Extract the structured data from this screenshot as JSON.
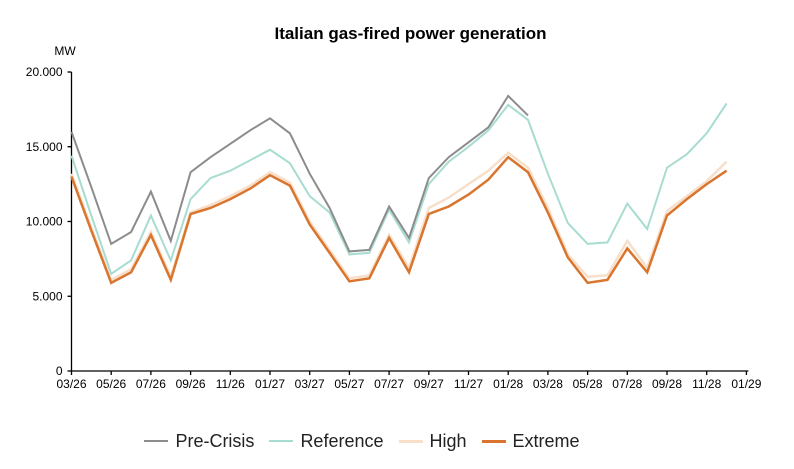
{
  "header": {
    "title": "Italian gas-fired power generation",
    "y_unit_label": "MW"
  },
  "chart_data": {
    "type": "line",
    "title": "Italian gas-fired power generation",
    "xlabel": "",
    "ylabel": "MW",
    "ylim": [
      0,
      20000
    ],
    "grid": false,
    "legend_position": "bottom",
    "y_tick_labels": [
      "0",
      "5.000",
      "10.000",
      "15.000",
      "20.000"
    ],
    "y_tick_values": [
      0,
      5000,
      10000,
      15000,
      20000
    ],
    "x": [
      "03/26",
      "04/26",
      "05/26",
      "06/26",
      "07/26",
      "08/26",
      "09/26",
      "10/26",
      "11/26",
      "12/26",
      "01/27",
      "02/27",
      "03/27",
      "04/27",
      "05/27",
      "06/27",
      "07/27",
      "08/27",
      "09/27",
      "10/27",
      "11/27",
      "12/27",
      "01/28",
      "02/28",
      "03/28",
      "04/28",
      "05/28",
      "06/28",
      "07/28",
      "08/28",
      "09/28",
      "10/28",
      "11/28",
      "12/28"
    ],
    "x_tick_labels": [
      "03/26",
      "05/26",
      "07/26",
      "09/26",
      "11/26",
      "01/27",
      "03/27",
      "05/27",
      "07/27",
      "09/27",
      "11/27",
      "01/28",
      "03/28",
      "05/28",
      "07/28",
      "09/28",
      "11/28",
      "01/29"
    ],
    "x_tick_every": 2,
    "series": [
      {
        "name": "Pre-Crisis",
        "color": "#8c8c8c",
        "width": 2,
        "values": [
          16000,
          12300,
          8500,
          9300,
          12000,
          8700,
          13300,
          14300,
          15200,
          16100,
          16900,
          15900,
          13200,
          10900,
          8000,
          8100,
          11000,
          8900,
          12900,
          14300,
          15300,
          16300,
          18400,
          17100,
          null,
          null,
          null,
          null,
          null,
          null,
          null,
          null,
          null,
          null
        ]
      },
      {
        "name": "Reference",
        "color": "#a7dcd1",
        "width": 2,
        "values": [
          14400,
          10400,
          6500,
          7400,
          10400,
          7400,
          11500,
          12900,
          13400,
          14100,
          14800,
          13900,
          11700,
          10600,
          7800,
          7900,
          10800,
          8600,
          12500,
          14000,
          15000,
          16100,
          17800,
          16800,
          13200,
          9900,
          8500,
          8600,
          11200,
          9500,
          13600,
          14500,
          15900,
          17900
        ]
      },
      {
        "name": "High",
        "color": "#f7dfc9",
        "width": 2.5,
        "values": [
          13200,
          9600,
          6100,
          6800,
          9300,
          6300,
          10600,
          11100,
          11700,
          12400,
          13300,
          12600,
          10000,
          8100,
          6200,
          6400,
          9100,
          6900,
          10900,
          11600,
          12500,
          13400,
          14600,
          13600,
          10900,
          7800,
          6300,
          6400,
          8700,
          6900,
          10700,
          11700,
          12700,
          14000
        ]
      },
      {
        "name": "Extreme",
        "color": "#d9752e",
        "width": 2.5,
        "values": [
          13000,
          9400,
          5900,
          6600,
          9100,
          6100,
          10500,
          10900,
          11500,
          12200,
          13100,
          12400,
          9800,
          7900,
          6000,
          6200,
          8900,
          6600,
          10500,
          11000,
          11800,
          12800,
          14300,
          13300,
          10600,
          7600,
          5900,
          6100,
          8200,
          6600,
          10400,
          11500,
          12500,
          13400
        ]
      }
    ]
  }
}
